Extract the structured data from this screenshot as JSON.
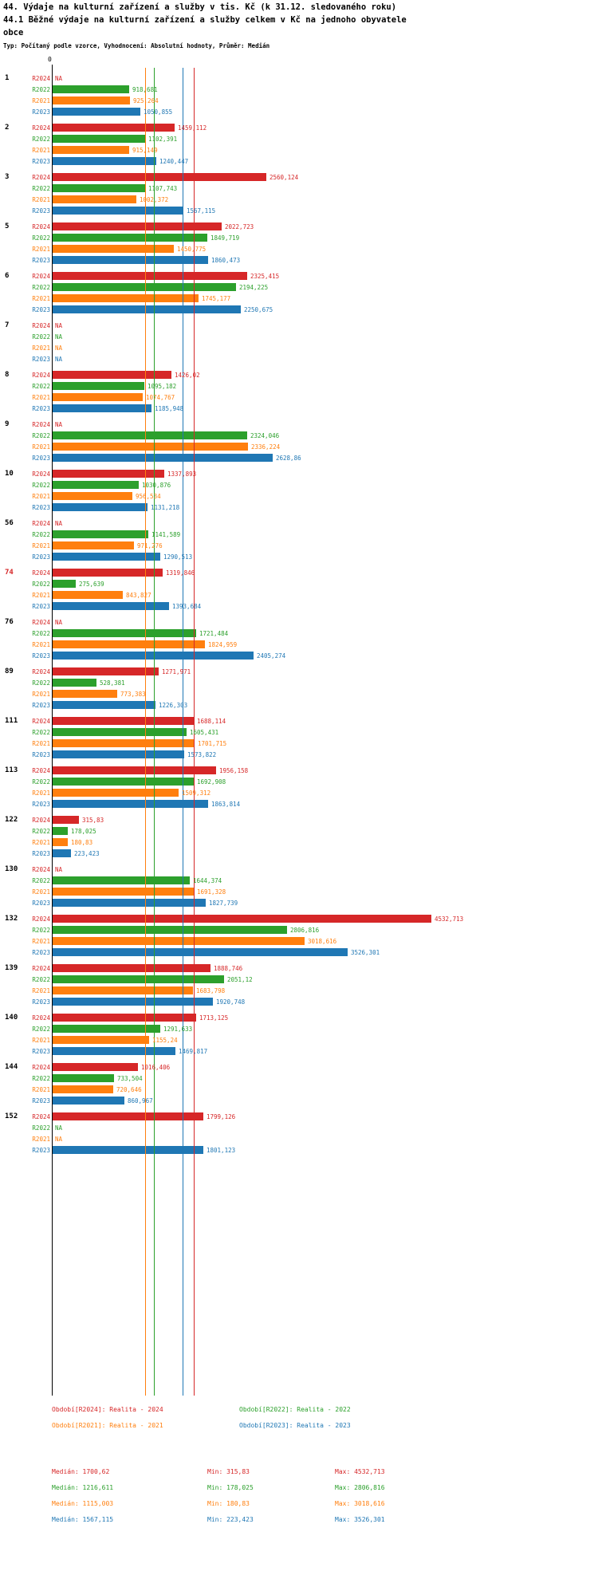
{
  "header": {
    "title": "44. Výdaje na kulturní zařízení a služby v tis. Kč (k 31.12. sledovaného roku)",
    "subtitle": "44.1 Běžné výdaje na kulturní zařízení a služby celkem v Kč na jednoho obyvatele",
    "subtitle2": "obce",
    "type_line": "Typ: Počítaný podle vzorce, Vyhodnocení: Absolutní hodnoty, Průměr: Medián"
  },
  "axis": {
    "zero_label": "0"
  },
  "colors": {
    "R2024": "#d62728",
    "R2022": "#2ca02c",
    "R2021": "#ff7f0e",
    "R2023": "#1f77b4"
  },
  "legend": [
    {
      "series": "R2024",
      "label": "Období[R2024]: Realita - 2024"
    },
    {
      "series": "R2022",
      "label": "Období[R2022]: Realita - 2022"
    },
    {
      "series": "R2021",
      "label": "Období[R2021]: Realita - 2021"
    },
    {
      "series": "R2023",
      "label": "Období[R2023]: Realita - 2023"
    }
  ],
  "stats": {
    "labels": {
      "median": "Medián:",
      "min": "Min:",
      "max": "Max:"
    },
    "rows": [
      {
        "series": "R2024",
        "median": "1700,62",
        "min": "315,83",
        "max": "4532,713"
      },
      {
        "series": "R2022",
        "median": "1216,611",
        "min": "178,025",
        "max": "2806,816"
      },
      {
        "series": "R2021",
        "median": "1115,003",
        "min": "180,83",
        "max": "3018,616"
      },
      {
        "series": "R2023",
        "median": "1567,115",
        "min": "223,423",
        "max": "3526,301"
      }
    ]
  },
  "chart_data": {
    "type": "bar",
    "orientation": "horizontal",
    "unit": "Kč na jednoho obyvatele",
    "x_axis": {
      "min": 0,
      "shown_tick": "0"
    },
    "series_order": [
      "R2024",
      "R2022",
      "R2021",
      "R2023"
    ],
    "medians": {
      "R2024": 1700.62,
      "R2022": 1216.611,
      "R2021": 1115.003,
      "R2023": 1567.115
    },
    "groups": [
      {
        "id": "1",
        "highlight": false,
        "bars": [
          {
            "series": "R2024",
            "value": null,
            "label": "NA"
          },
          {
            "series": "R2022",
            "value": 918.681,
            "label": "918,681"
          },
          {
            "series": "R2021",
            "value": 925.264,
            "label": "925,264"
          },
          {
            "series": "R2023",
            "value": 1050.855,
            "label": "1050,855"
          }
        ]
      },
      {
        "id": "2",
        "highlight": false,
        "bars": [
          {
            "series": "R2024",
            "value": 1459.112,
            "label": "1459,112"
          },
          {
            "series": "R2022",
            "value": 1102.391,
            "label": "1102,391"
          },
          {
            "series": "R2021",
            "value": 915.149,
            "label": "915,149"
          },
          {
            "series": "R2023",
            "value": 1240.447,
            "label": "1240,447"
          }
        ]
      },
      {
        "id": "3",
        "highlight": false,
        "bars": [
          {
            "series": "R2024",
            "value": 2560.124,
            "label": "2560,124"
          },
          {
            "series": "R2022",
            "value": 1107.743,
            "label": "1107,743"
          },
          {
            "series": "R2021",
            "value": 1002.372,
            "label": "1002,372"
          },
          {
            "series": "R2023",
            "value": 1567.115,
            "label": "1567,115"
          }
        ]
      },
      {
        "id": "5",
        "highlight": false,
        "bars": [
          {
            "series": "R2024",
            "value": 2022.723,
            "label": "2022,723"
          },
          {
            "series": "R2022",
            "value": 1849.719,
            "label": "1849,719"
          },
          {
            "series": "R2021",
            "value": 1450.775,
            "label": "1450,775"
          },
          {
            "series": "R2023",
            "value": 1860.473,
            "label": "1860,473"
          }
        ]
      },
      {
        "id": "6",
        "highlight": false,
        "bars": [
          {
            "series": "R2024",
            "value": 2325.415,
            "label": "2325,415"
          },
          {
            "series": "R2022",
            "value": 2194.225,
            "label": "2194,225"
          },
          {
            "series": "R2021",
            "value": 1745.177,
            "label": "1745,177"
          },
          {
            "series": "R2023",
            "value": 2250.675,
            "label": "2250,675"
          }
        ]
      },
      {
        "id": "7",
        "highlight": false,
        "bars": [
          {
            "series": "R2024",
            "value": null,
            "label": "NA"
          },
          {
            "series": "R2022",
            "value": null,
            "label": "NA"
          },
          {
            "series": "R2021",
            "value": null,
            "label": "NA"
          },
          {
            "series": "R2023",
            "value": null,
            "label": "NA"
          }
        ]
      },
      {
        "id": "8",
        "highlight": false,
        "bars": [
          {
            "series": "R2024",
            "value": 1426.02,
            "label": "1426,02"
          },
          {
            "series": "R2022",
            "value": 1095.182,
            "label": "1095,182"
          },
          {
            "series": "R2021",
            "value": 1074.767,
            "label": "1074,767"
          },
          {
            "series": "R2023",
            "value": 1185.948,
            "label": "1185,948"
          }
        ]
      },
      {
        "id": "9",
        "highlight": false,
        "bars": [
          {
            "series": "R2024",
            "value": null,
            "label": "NA"
          },
          {
            "series": "R2022",
            "value": 2324.046,
            "label": "2324,046"
          },
          {
            "series": "R2021",
            "value": 2336.224,
            "label": "2336,224"
          },
          {
            "series": "R2023",
            "value": 2628.86,
            "label": "2628,86"
          }
        ]
      },
      {
        "id": "10",
        "highlight": false,
        "bars": [
          {
            "series": "R2024",
            "value": 1337.893,
            "label": "1337,893"
          },
          {
            "series": "R2022",
            "value": 1030.876,
            "label": "1030,876"
          },
          {
            "series": "R2021",
            "value": 956.534,
            "label": "956,534"
          },
          {
            "series": "R2023",
            "value": 1131.218,
            "label": "1131,218"
          }
        ]
      },
      {
        "id": "56",
        "highlight": false,
        "bars": [
          {
            "series": "R2024",
            "value": null,
            "label": "NA"
          },
          {
            "series": "R2022",
            "value": 1141.589,
            "label": "1141,589"
          },
          {
            "series": "R2021",
            "value": 971.276,
            "label": "971,276"
          },
          {
            "series": "R2023",
            "value": 1290.513,
            "label": "1290,513"
          }
        ]
      },
      {
        "id": "74",
        "highlight": true,
        "bars": [
          {
            "series": "R2024",
            "value": 1319.846,
            "label": "1319,846"
          },
          {
            "series": "R2022",
            "value": 275.639,
            "label": "275,639"
          },
          {
            "series": "R2021",
            "value": 843.827,
            "label": "843,827"
          },
          {
            "series": "R2023",
            "value": 1393.684,
            "label": "1393,684"
          }
        ]
      },
      {
        "id": "76",
        "highlight": false,
        "bars": [
          {
            "series": "R2024",
            "value": null,
            "label": "NA"
          },
          {
            "series": "R2022",
            "value": 1721.484,
            "label": "1721,484"
          },
          {
            "series": "R2021",
            "value": 1824.959,
            "label": "1824,959"
          },
          {
            "series": "R2023",
            "value": 2405.274,
            "label": "2405,274"
          }
        ]
      },
      {
        "id": "89",
        "highlight": false,
        "bars": [
          {
            "series": "R2024",
            "value": 1271.971,
            "label": "1271,971"
          },
          {
            "series": "R2022",
            "value": 528.381,
            "label": "528,381"
          },
          {
            "series": "R2021",
            "value": 773.383,
            "label": "773,383"
          },
          {
            "series": "R2023",
            "value": 1226.303,
            "label": "1226,303"
          }
        ]
      },
      {
        "id": "111",
        "highlight": false,
        "bars": [
          {
            "series": "R2024",
            "value": 1688.114,
            "label": "1688,114"
          },
          {
            "series": "R2022",
            "value": 1605.431,
            "label": "1605,431"
          },
          {
            "series": "R2021",
            "value": 1701.715,
            "label": "1701,715"
          },
          {
            "series": "R2023",
            "value": 1573.822,
            "label": "1573,822"
          }
        ]
      },
      {
        "id": "113",
        "highlight": false,
        "bars": [
          {
            "series": "R2024",
            "value": 1956.158,
            "label": "1956,158"
          },
          {
            "series": "R2022",
            "value": 1692.908,
            "label": "1692,908"
          },
          {
            "series": "R2021",
            "value": 1509.312,
            "label": "1509,312"
          },
          {
            "series": "R2023",
            "value": 1863.814,
            "label": "1863,814"
          }
        ]
      },
      {
        "id": "122",
        "highlight": false,
        "bars": [
          {
            "series": "R2024",
            "value": 315.83,
            "label": "315,83"
          },
          {
            "series": "R2022",
            "value": 178.025,
            "label": "178,025"
          },
          {
            "series": "R2021",
            "value": 180.83,
            "label": "180,83"
          },
          {
            "series": "R2023",
            "value": 223.423,
            "label": "223,423"
          }
        ]
      },
      {
        "id": "130",
        "highlight": false,
        "bars": [
          {
            "series": "R2024",
            "value": null,
            "label": "NA"
          },
          {
            "series": "R2022",
            "value": 1644.374,
            "label": "1644,374"
          },
          {
            "series": "R2021",
            "value": 1691.328,
            "label": "1691,328"
          },
          {
            "series": "R2023",
            "value": 1827.739,
            "label": "1827,739"
          }
        ]
      },
      {
        "id": "132",
        "highlight": false,
        "bars": [
          {
            "series": "R2024",
            "value": 4532.713,
            "label": "4532,713"
          },
          {
            "series": "R2022",
            "value": 2806.816,
            "label": "2806,816"
          },
          {
            "series": "R2021",
            "value": 3018.616,
            "label": "3018,616"
          },
          {
            "series": "R2023",
            "value": 3526.301,
            "label": "3526,301"
          }
        ]
      },
      {
        "id": "139",
        "highlight": false,
        "bars": [
          {
            "series": "R2024",
            "value": 1888.746,
            "label": "1888,746"
          },
          {
            "series": "R2022",
            "value": 2051.12,
            "label": "2051,12"
          },
          {
            "series": "R2021",
            "value": 1683.798,
            "label": "1683,798"
          },
          {
            "series": "R2023",
            "value": 1920.748,
            "label": "1920,748"
          }
        ]
      },
      {
        "id": "140",
        "highlight": false,
        "bars": [
          {
            "series": "R2024",
            "value": 1713.125,
            "label": "1713,125"
          },
          {
            "series": "R2022",
            "value": 1291.633,
            "label": "1291,633"
          },
          {
            "series": "R2021",
            "value": 1155.24,
            "label": "1155,24"
          },
          {
            "series": "R2023",
            "value": 1469.817,
            "label": "1469,817"
          }
        ]
      },
      {
        "id": "144",
        "highlight": false,
        "bars": [
          {
            "series": "R2024",
            "value": 1016.406,
            "label": "1016,406"
          },
          {
            "series": "R2022",
            "value": 733.504,
            "label": "733,504"
          },
          {
            "series": "R2021",
            "value": 720.646,
            "label": "720,646"
          },
          {
            "series": "R2023",
            "value": 860.967,
            "label": "860,967"
          }
        ]
      },
      {
        "id": "152",
        "highlight": false,
        "bars": [
          {
            "series": "R2024",
            "value": 1799.126,
            "label": "1799,126"
          },
          {
            "series": "R2022",
            "value": null,
            "label": "NA"
          },
          {
            "series": "R2021",
            "value": null,
            "label": "NA"
          },
          {
            "series": "R2023",
            "value": 1801.123,
            "label": "1801,123"
          }
        ]
      }
    ]
  }
}
